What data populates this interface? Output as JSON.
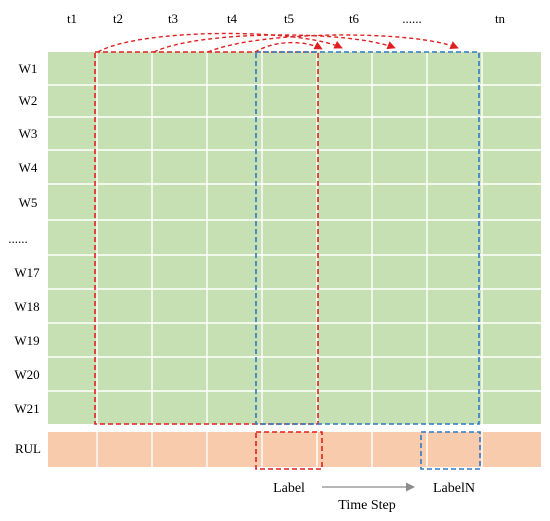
{
  "columns": [
    "t1",
    "t2",
    "t3",
    "t4",
    "t5",
    "t6",
    "......",
    "tn"
  ],
  "rows": [
    "W1",
    "W2",
    "W3",
    "W4",
    "W5",
    "......",
    "W17",
    "W18",
    "W19",
    "W20",
    "W21"
  ],
  "rul_label": "RUL",
  "label_start": "Label",
  "label_end": "LabelN",
  "axis_label": "Time Step",
  "colors": {
    "sensor_fill": "#c6e0b4",
    "rul_fill": "#f8cbad",
    "grid_line": "#ffffff",
    "window_first": "#e02020",
    "window_last": "#2f78c4",
    "arrow": "#8c8c8c"
  }
}
